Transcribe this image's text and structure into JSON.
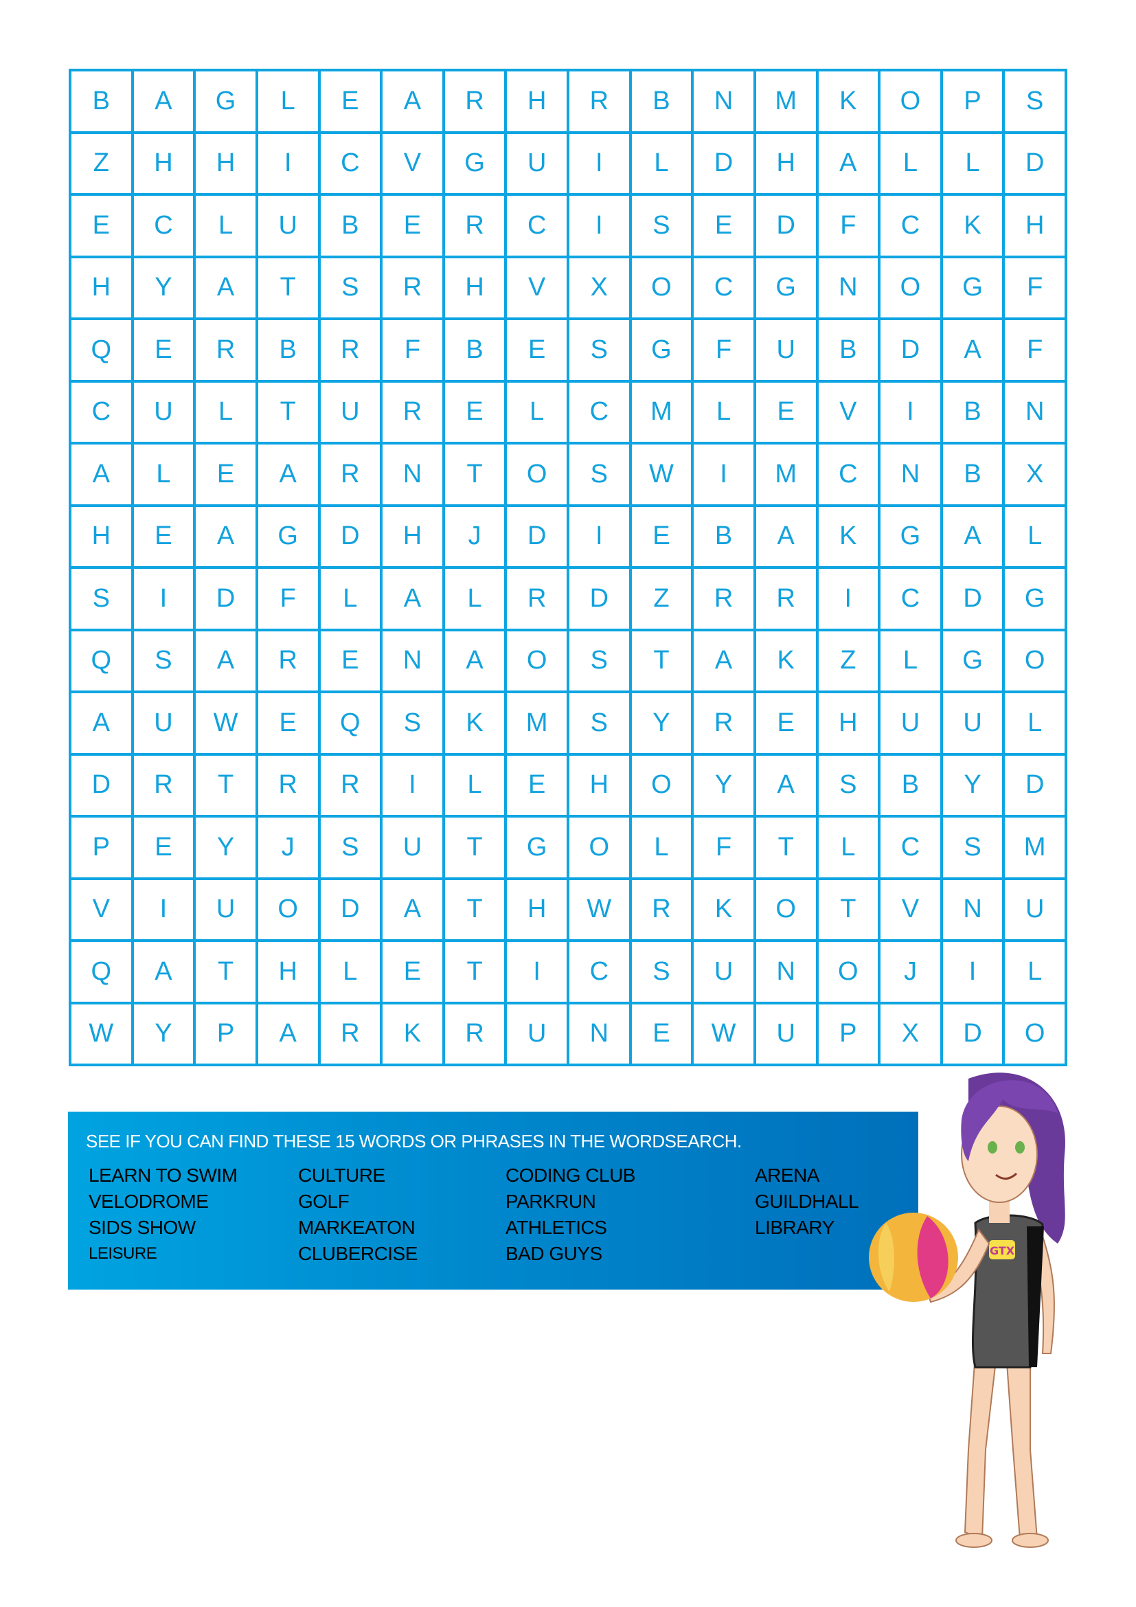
{
  "grid": {
    "rows": [
      "BAGLEARHRBNMKOPS",
      "ZHHICVGUILDHALLD",
      "ECLUBERCISEDFCKH",
      "HYATSRHVXOCGNOGF",
      "QERBRFBESGFUBDAF",
      "CULTURELCMLEVIBN",
      "ALEARNTOSWIMCNBX",
      "HEAGDHJDIEBAKGAL",
      "SIDFLALRDZRRICDG",
      "QSARENAOSTAKZLGO",
      "AUWEQSKMSYREHUUL",
      "DRTRRILEHOYASBYD",
      "PEYJSUTGOLFTLCSM",
      "VIUODATHWRKOTVNU",
      "QATHLETICSUNOJIL",
      "WYPARKRUNEWUPXDO"
    ],
    "line_color": "#0ea5e2",
    "letter_color": "#12a2de"
  },
  "word_box": {
    "instruction": "SEE IF YOU CAN FIND THESE 15 WORDS OR PHRASES IN THE WORDSEARCH.",
    "columns": [
      [
        "LEARN TO SWIM",
        "VELODROME",
        "SIDS SHOW",
        "LEISURE"
      ],
      [
        "CULTURE",
        "GOLF",
        "MARKEATON",
        "CLUBERCISE"
      ],
      [
        "CODING CLUB",
        "PARKRUN",
        "ATHLETICS",
        "BAD GUYS"
      ],
      [
        "ARENA",
        "GUILDHALL",
        "LIBRARY"
      ]
    ],
    "gradient_start": "#00a3e0",
    "gradient_end": "#0070bb"
  },
  "mascot": {
    "badge_text": "GTX"
  }
}
